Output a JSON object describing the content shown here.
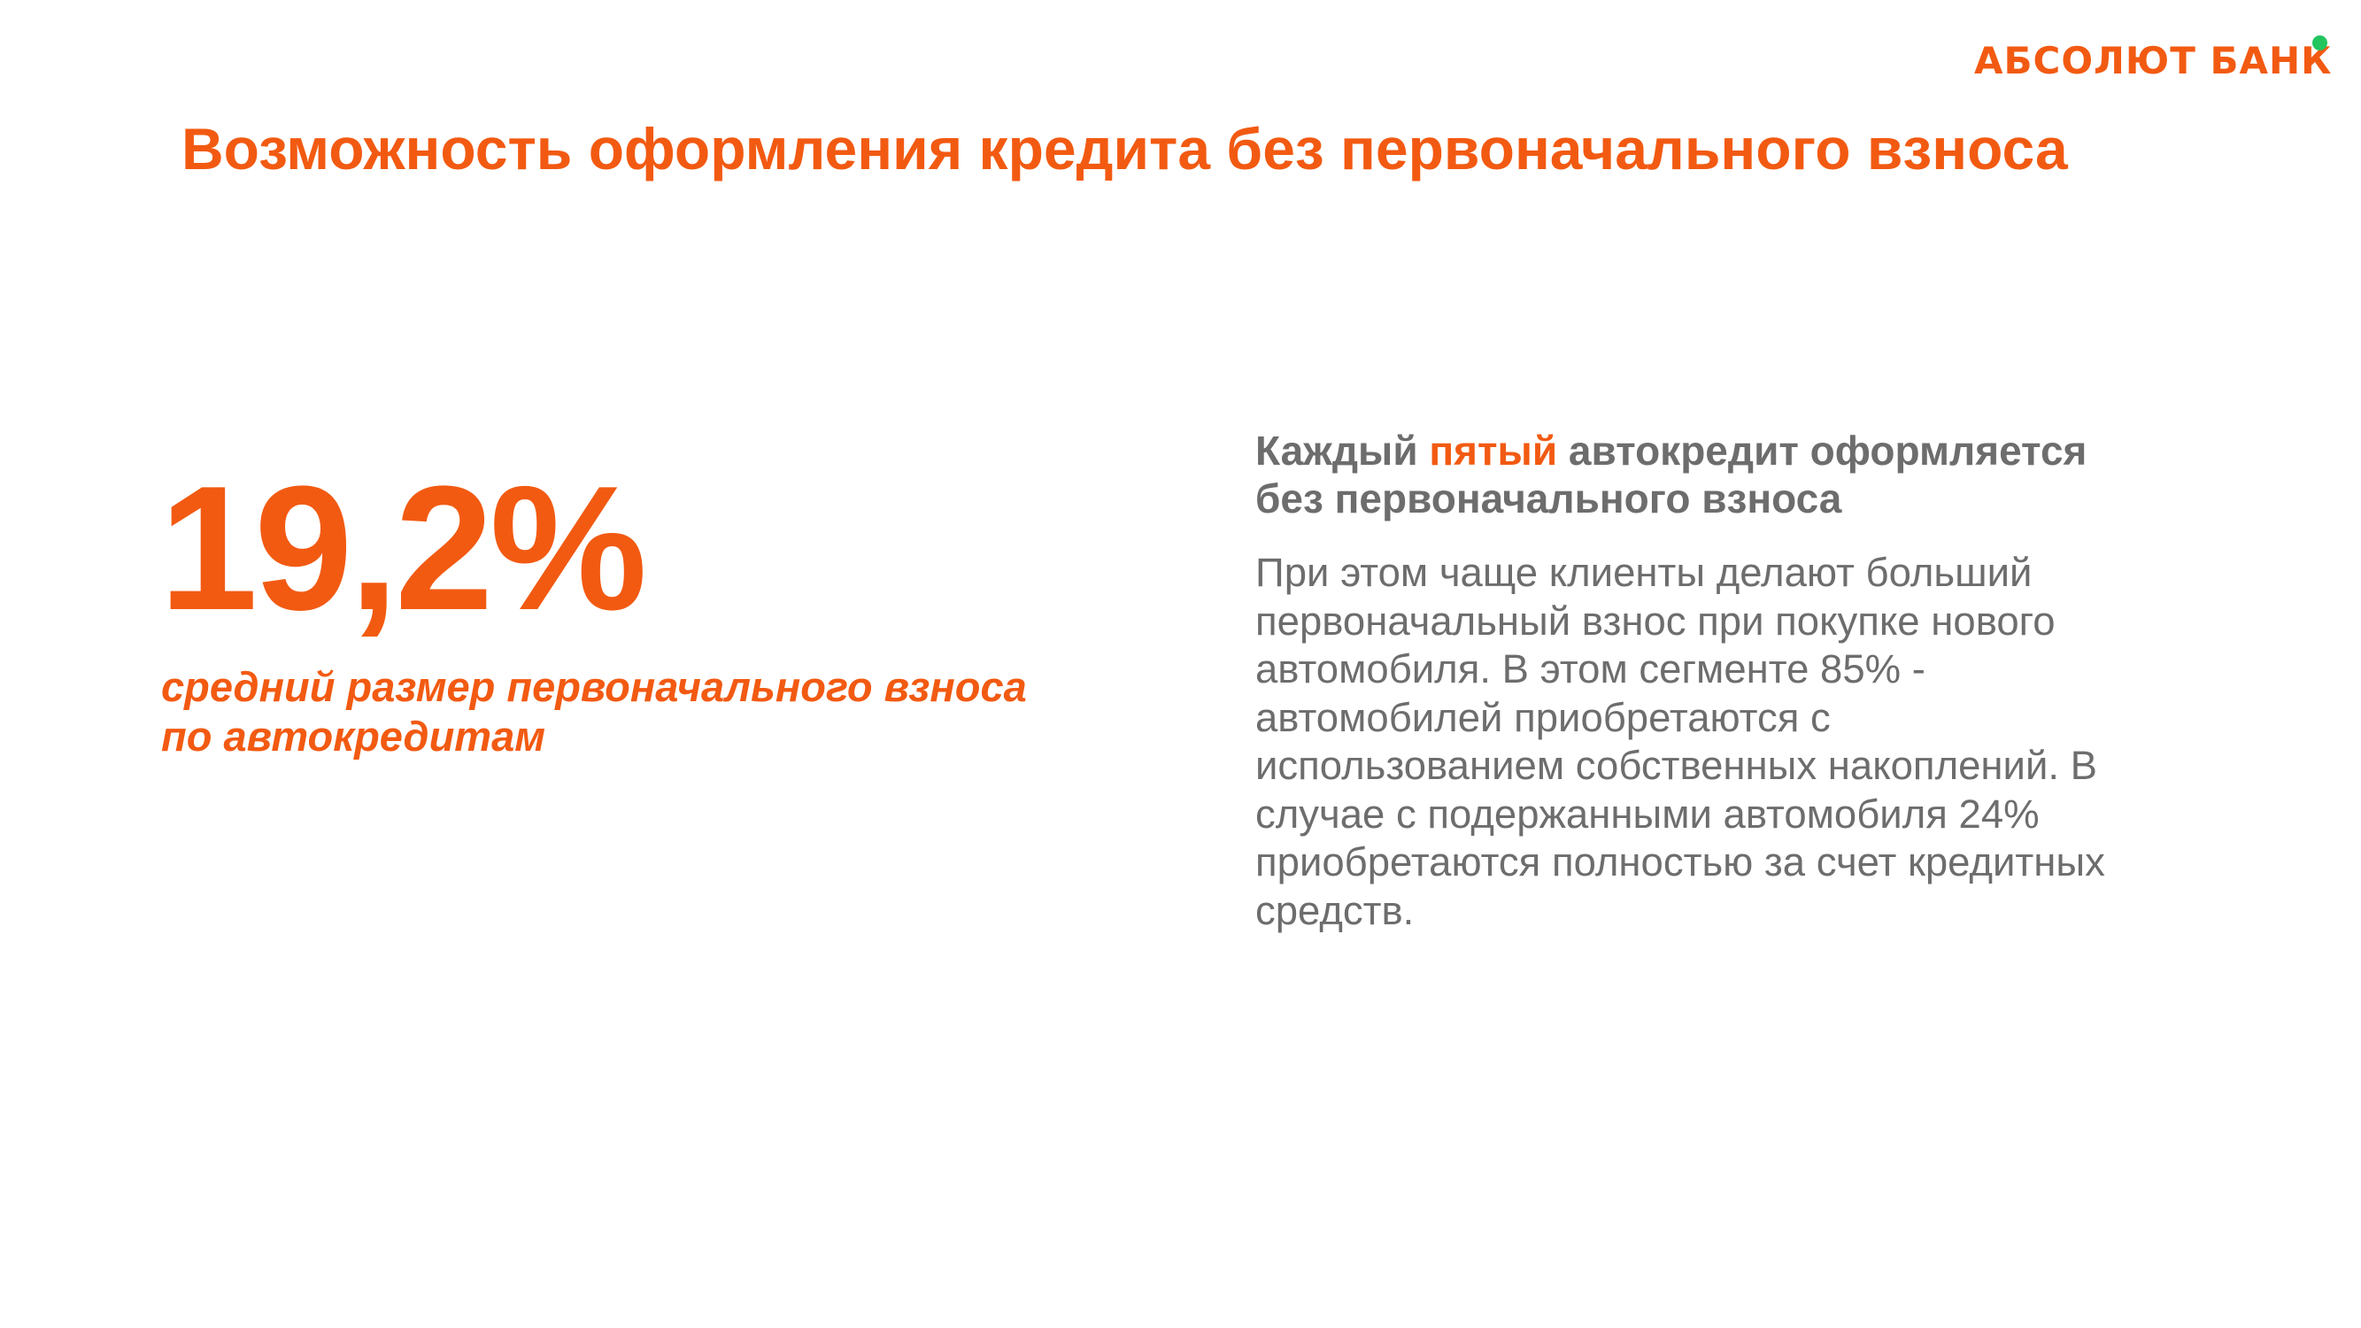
{
  "logo": {
    "text": "АБСОЛЮТ БАНК",
    "dot_color": "#22c55e"
  },
  "title": "Возможность оформления кредита без первоначального взноса",
  "stat": {
    "value": "19,2%",
    "caption_line1": "средний размер первоначального взноса",
    "caption_line2": "по автокредитам"
  },
  "headline": {
    "part1": "Каждый ",
    "accent": "пятый",
    "part2": " автокредит оформляется",
    "line2": "без первоначального взноса"
  },
  "body": "При этом чаще клиенты делают больший\nпервоначальный взнос при покупке нового\nавтомобиля. В этом сегменте 85%  -\nавтомобилей приобретаются с\nиспользованием собственных накоплений. В\nслучае с подержанными автомобиля 24%\nприобретаются полностью за счет кредитных\nсредств.",
  "colors": {
    "accent": "#f25a12",
    "text_gray": "#6d6d6d",
    "logo_dot": "#22c55e"
  }
}
